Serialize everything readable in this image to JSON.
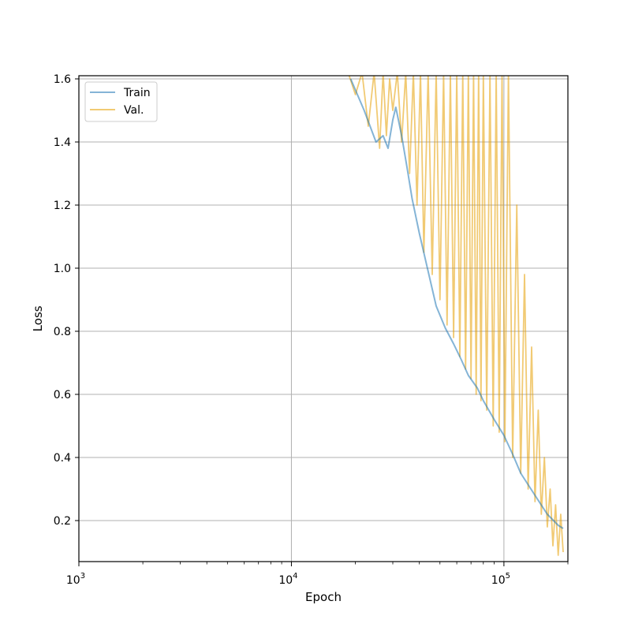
{
  "chart_data": {
    "type": "line",
    "title": "",
    "xlabel": "Epoch",
    "ylabel": "Loss",
    "xscale": "log",
    "xlim": [
      1000,
      200000
    ],
    "ylim": [
      0.07,
      1.61
    ],
    "grid": true,
    "legend_position": "top-left",
    "x_ticks": [
      {
        "value": 1000,
        "base": "10",
        "exp": "3"
      },
      {
        "value": 10000,
        "base": "10",
        "exp": "4"
      },
      {
        "value": 100000,
        "base": "10",
        "exp": "5"
      }
    ],
    "y_ticks": [
      {
        "value": 0.2,
        "label": "0.2"
      },
      {
        "value": 0.4,
        "label": "0.4"
      },
      {
        "value": 0.6,
        "label": "0.6"
      },
      {
        "value": 0.8,
        "label": "0.8"
      },
      {
        "value": 1.0,
        "label": "1.0"
      },
      {
        "value": 1.2,
        "label": "1.2"
      },
      {
        "value": 1.4,
        "label": "1.4"
      },
      {
        "value": 1.6,
        "label": "1.6"
      }
    ],
    "series": [
      {
        "name": "Train",
        "color": "#1f77b4",
        "x": [
          19000,
          22000,
          25000,
          27000,
          28500,
          30000,
          31000,
          33000,
          35000,
          37000,
          40000,
          44000,
          48000,
          53000,
          58000,
          63000,
          68000,
          75000,
          80000,
          90000,
          100000,
          110000,
          120000,
          140000,
          160000,
          180000,
          190000
        ],
        "values": [
          1.6,
          1.5,
          1.4,
          1.42,
          1.38,
          1.47,
          1.51,
          1.42,
          1.32,
          1.22,
          1.11,
          0.99,
          0.88,
          0.81,
          0.76,
          0.71,
          0.66,
          0.62,
          0.58,
          0.52,
          0.47,
          0.41,
          0.35,
          0.28,
          0.22,
          0.185,
          0.175
        ]
      },
      {
        "name": "Val.",
        "color": "#e69f00",
        "x": [
          18500,
          20000,
          21500,
          23000,
          24500,
          26000,
          27000,
          28000,
          29000,
          30000,
          31500,
          33000,
          34500,
          36000,
          37500,
          39000,
          40500,
          42000,
          44000,
          46000,
          48000,
          50000,
          52000,
          54000,
          56000,
          58000,
          60000,
          62000,
          64000,
          66000,
          68000,
          70000,
          72000,
          74000,
          76000,
          78000,
          80000,
          83000,
          86000,
          89000,
          92000,
          95000,
          98000,
          101000,
          105000,
          110000,
          115000,
          120000,
          125000,
          130000,
          135000,
          140000,
          145000,
          150000,
          155000,
          160000,
          165000,
          170000,
          175000,
          180000,
          185000,
          190000
        ],
        "values": [
          1.62,
          1.55,
          1.62,
          1.45,
          1.62,
          1.38,
          1.62,
          1.42,
          1.6,
          1.5,
          1.62,
          1.4,
          1.62,
          1.3,
          1.62,
          1.2,
          1.62,
          1.05,
          1.62,
          0.98,
          1.62,
          0.9,
          1.62,
          0.82,
          1.62,
          0.78,
          1.62,
          0.72,
          1.62,
          0.68,
          1.62,
          0.65,
          1.62,
          0.6,
          1.62,
          0.58,
          1.62,
          0.55,
          1.62,
          0.5,
          1.62,
          0.48,
          1.62,
          0.45,
          1.62,
          0.4,
          1.2,
          0.35,
          0.98,
          0.3,
          0.75,
          0.26,
          0.55,
          0.22,
          0.4,
          0.18,
          0.3,
          0.12,
          0.25,
          0.09,
          0.22,
          0.1
        ]
      }
    ]
  }
}
